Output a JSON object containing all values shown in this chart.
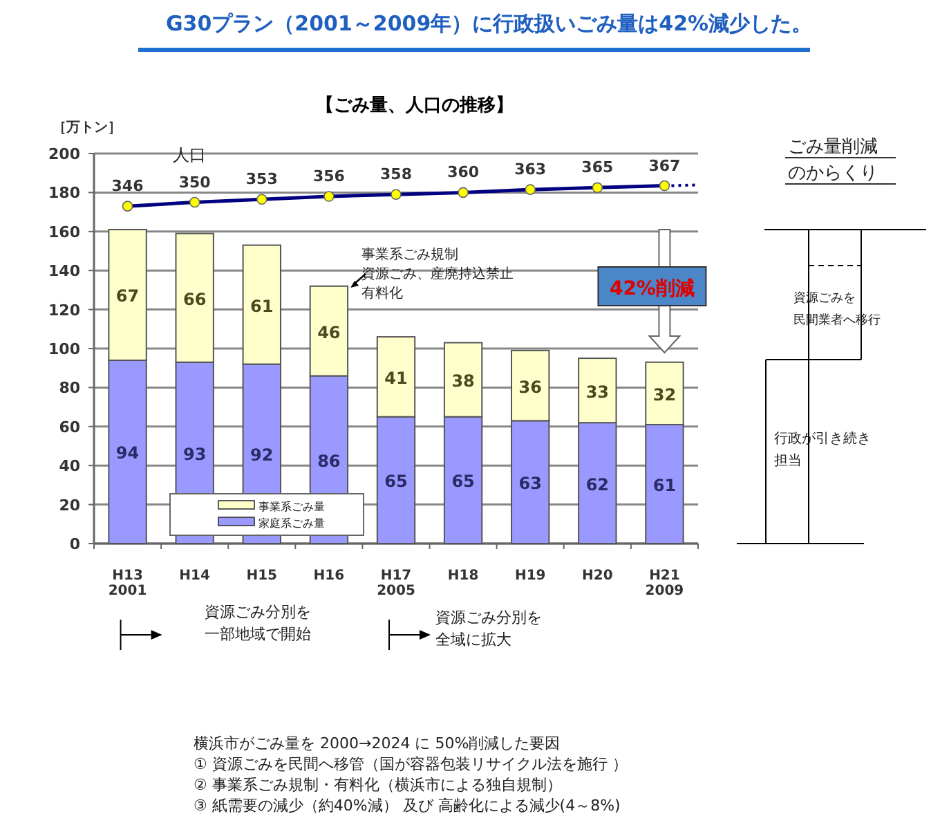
{
  "chart_data": {
    "type": "bar",
    "title": "G30プラン（2001～2009年）に行政扱いごみ量は42%減少した。",
    "subtitle": "【ごみ量、人口の推移】",
    "ylabel": "［万トン］",
    "categories": [
      "H13\n2001",
      "H14",
      "H15",
      "H16",
      "H17\n2005",
      "H18",
      "H19",
      "H20",
      "H21\n2009"
    ],
    "stacked": true,
    "data_labels": true,
    "grid": "y",
    "legend": "bottom left",
    "ylim": [
      0,
      200
    ],
    "y2lim": [
      0,
      400
    ],
    "yticks": [
      0,
      20,
      40,
      60,
      80,
      100,
      120,
      140,
      160,
      180,
      200
    ],
    "series": [
      {
        "name": "家庭系ごみ量",
        "color": "#9999ff",
        "values": [
          94,
          93,
          92,
          86,
          65,
          65,
          63,
          62,
          61
        ]
      },
      {
        "name": "事業系ごみ量",
        "color": "#ffffcc",
        "values": [
          67,
          66,
          61,
          46,
          41,
          38,
          36,
          33,
          32
        ]
      },
      {
        "name": "人口",
        "type": "line",
        "axis": "y2",
        "color": "#000080",
        "marker": "circle",
        "values": [
          346,
          350,
          353,
          356,
          358,
          360,
          363,
          365,
          367
        ],
        "value_labels": [
          "346",
          "350",
          "353",
          "356",
          "358",
          "360",
          "363",
          "365",
          "367"
        ]
      }
    ],
    "annotations": [
      "事業系ごみ規制資源ごみ、産廃持込禁止有料化",
      "42%削減",
      "資源ごみ分別を一部地域で開始",
      "資源ごみ分別を全域に拡大",
      "ごみ量削減のからくり",
      "資源ごみを民間業者へ移行",
      "行政が引き続き担当",
      "横浜市がごみ量を 2000→2024 に 50%削減した要因\n① 資源ごみを民間へ移管（国が容器包装リサイクル法を施行 ）\n② 事業系ごみ規制・有料化（横浜市による独自規制）\n③ 紙需要の減少（約40%減） 及び 高齢化による減少(4～8%)"
    ]
  }
}
